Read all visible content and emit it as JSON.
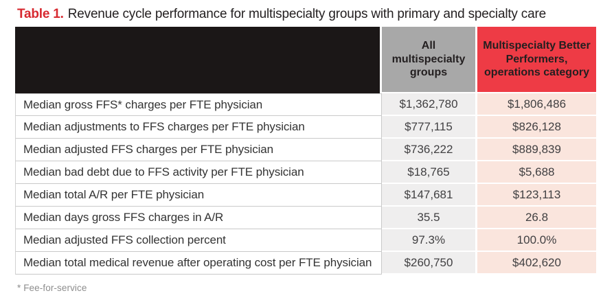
{
  "title": {
    "prefix": "Table 1.",
    "text": "Revenue cycle performance for multispecialty groups with primary and specialty care"
  },
  "table": {
    "header": {
      "metric": "",
      "all": "All multispecialty groups",
      "better": "Multispecialty Better Performers, operations category"
    },
    "footnote": "* Fee-for-service"
  },
  "colors": {
    "title_red": "#d7282f",
    "header_red": "#ee3b45",
    "header_black": "#1b1717",
    "header_gray": "#a8a8a8",
    "cell_gray": "#efeeee",
    "cell_pink": "#fae5dd"
  },
  "chart_data": {
    "type": "table",
    "title": "Table 1. Revenue cycle performance for multispecialty groups with primary and specialty care",
    "columns": [
      "",
      "All multispecialty groups",
      "Multispecialty Better Performers, operations category"
    ],
    "footnote": "* Fee-for-service",
    "rows": [
      {
        "label": "Median gross FFS* charges per FTE physician",
        "all": "$1,362,780",
        "better": "$1,806,486"
      },
      {
        "label": "Median adjustments to FFS charges per FTE physician",
        "all": "$777,115",
        "better": "$826,128"
      },
      {
        "label": "Median adjusted FFS charges per FTE physician",
        "all": "$736,222",
        "better": "$889,839"
      },
      {
        "label": "Median bad debt due to FFS activity per FTE physician",
        "all": "$18,765",
        "better": "$5,688"
      },
      {
        "label": "Median total A/R per FTE physician",
        "all": "$147,681",
        "better": "$123,113"
      },
      {
        "label": "Median days gross FFS charges in A/R",
        "all": "35.5",
        "better": "26.8"
      },
      {
        "label": "Median adjusted FFS collection percent",
        "all": "97.3%",
        "better": "100.0%"
      },
      {
        "label": "Median total medical revenue after operating cost per FTE physician",
        "all": "$260,750",
        "better": "$402,620"
      }
    ]
  }
}
